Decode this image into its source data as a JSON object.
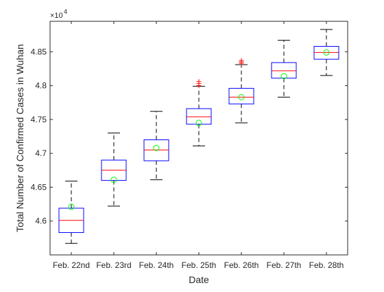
{
  "chart_data": {
    "type": "boxplot",
    "xlabel": "Date",
    "ylabel": "Total Number of Confirmed Cases in Wuhan",
    "y_exponent_label": "×10",
    "y_exponent_power": "4",
    "ylim": [
      45500,
      48950
    ],
    "y_ticks": [
      46000,
      46500,
      47000,
      47500,
      48000,
      48500
    ],
    "y_tick_labels": [
      "4.6",
      "4.65",
      "4.7",
      "4.75",
      "4.8",
      "4.85"
    ],
    "grid": false,
    "categories": [
      "Feb. 22nd",
      "Feb. 23rd",
      "Feb. 24th",
      "Feb. 25th",
      "Feb. 26th",
      "Feb. 27th",
      "Feb. 28th"
    ],
    "boxes": [
      {
        "whisker_low": 45670,
        "q1": 45830,
        "median": 46010,
        "q3": 46190,
        "whisker_high": 46590,
        "mean": 46210,
        "outliers": []
      },
      {
        "whisker_low": 46220,
        "q1": 46600,
        "median": 46750,
        "q3": 46900,
        "whisker_high": 47300,
        "mean": 46610,
        "outliers": []
      },
      {
        "whisker_low": 46610,
        "q1": 46890,
        "median": 47050,
        "q3": 47200,
        "whisker_high": 47620,
        "mean": 47080,
        "outliers": []
      },
      {
        "whisker_low": 47110,
        "q1": 47430,
        "median": 47540,
        "q3": 47660,
        "whisker_high": 47990,
        "mean": 47450,
        "outliers": [
          48000,
          48030,
          48060
        ]
      },
      {
        "whisker_low": 47450,
        "q1": 47730,
        "median": 47830,
        "q3": 47960,
        "whisker_high": 48310,
        "mean": 47830,
        "outliers": [
          48330,
          48350,
          48370
        ]
      },
      {
        "whisker_low": 47830,
        "q1": 48110,
        "median": 48220,
        "q3": 48340,
        "whisker_high": 48670,
        "mean": 48140,
        "outliers": []
      },
      {
        "whisker_low": 48150,
        "q1": 48390,
        "median": 48490,
        "q3": 48580,
        "whisker_high": 48830,
        "mean": 48490,
        "outliers": []
      }
    ],
    "colors": {
      "box": "#0000ff",
      "median": "#ff0000",
      "whisker": "#000000",
      "mean": "#00ff00",
      "outlier": "#ff0000",
      "axes": "#262626"
    }
  }
}
